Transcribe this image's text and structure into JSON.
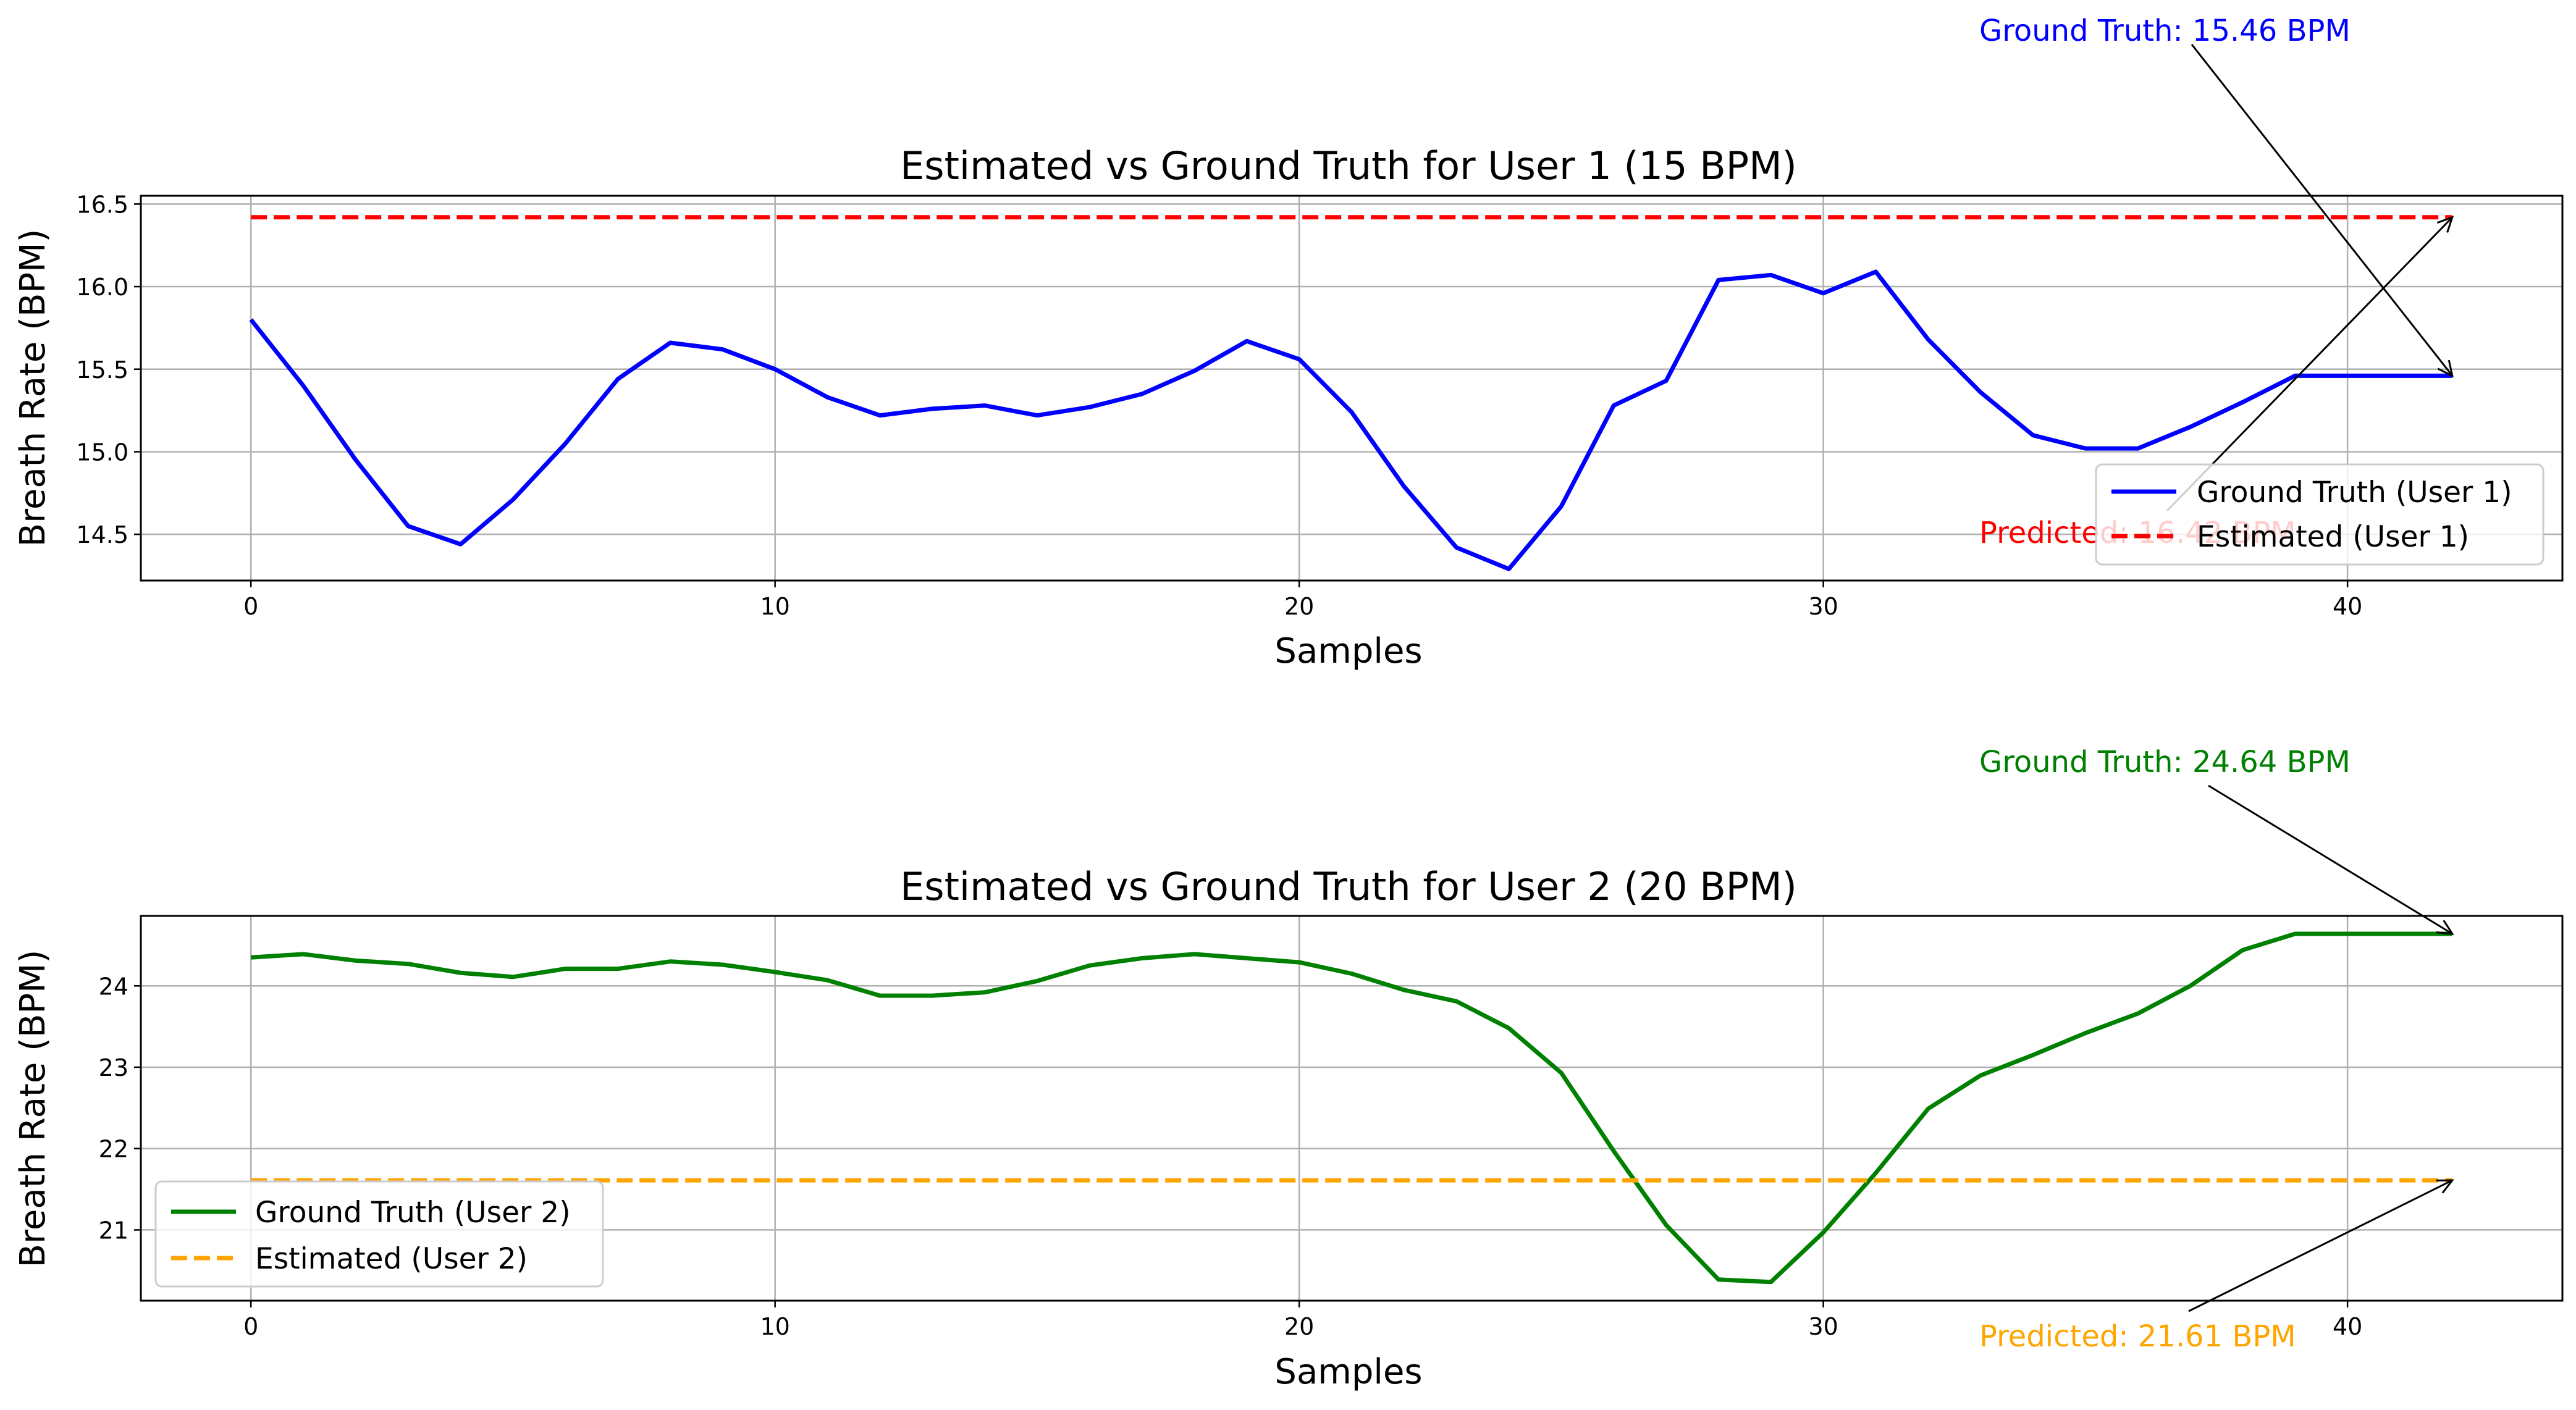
{
  "chart_data": [
    {
      "type": "line",
      "title": "Estimated vs Ground Truth for User 1 (15 BPM)",
      "xlabel": "Samples",
      "ylabel": "Breath Rate (BPM)",
      "xlim": [
        -2.1,
        44.1
      ],
      "ylim": [
        14.22,
        16.55
      ],
      "xticks": [
        0,
        10,
        20,
        30,
        40
      ],
      "yticks": [
        14.5,
        15.0,
        15.5,
        16.0,
        16.5
      ],
      "ytick_decimals": 1,
      "grid": true,
      "legend": "lower right",
      "series": [
        {
          "name": "Ground Truth (User 1)",
          "style": "solid",
          "color": "#0000ff",
          "x": [
            0,
            1,
            2,
            3,
            4,
            5,
            6,
            7,
            8,
            9,
            10,
            11,
            12,
            13,
            14,
            15,
            16,
            17,
            18,
            19,
            20,
            21,
            22,
            23,
            24,
            25,
            26,
            27,
            28,
            29,
            30,
            31,
            32,
            33,
            34,
            35,
            36,
            37,
            38,
            39,
            40,
            41,
            42
          ],
          "values": [
            15.8,
            15.4,
            14.95,
            14.55,
            14.44,
            14.71,
            15.05,
            15.44,
            15.66,
            15.62,
            15.5,
            15.33,
            15.22,
            15.26,
            15.28,
            15.22,
            15.27,
            15.35,
            15.49,
            15.67,
            15.56,
            15.24,
            14.79,
            14.42,
            14.29,
            14.67,
            15.28,
            15.43,
            16.04,
            16.07,
            15.96,
            16.09,
            15.68,
            15.36,
            15.1,
            15.02,
            15.02,
            15.15,
            15.3,
            15.46,
            15.46,
            15.46,
            15.46
          ]
        },
        {
          "name": "Estimated (User 1)",
          "style": "dashed",
          "color": "#ff0000",
          "x": [
            0,
            42
          ],
          "values": [
            16.42,
            16.42
          ]
        }
      ],
      "annotations": [
        {
          "text": "Ground Truth: 15.46 BPM",
          "color": "#0000ff",
          "target": [
            42,
            15.46
          ]
        },
        {
          "text": "Predicted: 16.42 BPM",
          "color": "#ff0000",
          "target": [
            42,
            16.42
          ]
        }
      ]
    },
    {
      "type": "line",
      "title": "Estimated vs Ground Truth for User 2 (20 BPM)",
      "xlabel": "Samples",
      "ylabel": "Breath Rate (BPM)",
      "xlim": [
        -2.1,
        44.1
      ],
      "ylim": [
        20.13,
        24.86
      ],
      "xticks": [
        0,
        10,
        20,
        30,
        40
      ],
      "yticks": [
        21,
        22,
        23,
        24
      ],
      "ytick_decimals": 0,
      "grid": true,
      "legend": "lower left",
      "series": [
        {
          "name": "Ground Truth (User 2)",
          "style": "solid",
          "color": "#008000",
          "x": [
            0,
            1,
            2,
            3,
            4,
            5,
            6,
            7,
            8,
            9,
            10,
            11,
            12,
            13,
            14,
            15,
            16,
            17,
            18,
            19,
            20,
            21,
            22,
            23,
            24,
            25,
            26,
            27,
            28,
            29,
            30,
            31,
            32,
            33,
            34,
            35,
            36,
            37,
            38,
            39,
            40,
            41,
            42
          ],
          "values": [
            24.35,
            24.39,
            24.31,
            24.27,
            24.16,
            24.11,
            24.21,
            24.21,
            24.3,
            24.26,
            24.17,
            24.07,
            23.88,
            23.88,
            23.92,
            24.06,
            24.25,
            24.34,
            24.39,
            24.34,
            24.29,
            24.15,
            23.95,
            23.81,
            23.48,
            22.93,
            21.97,
            21.06,
            20.39,
            20.36,
            20.97,
            21.7,
            22.49,
            22.9,
            23.15,
            23.42,
            23.66,
            24.0,
            24.44,
            24.64,
            24.64,
            24.64,
            24.64
          ]
        },
        {
          "name": "Estimated (User 2)",
          "style": "dashed",
          "color": "#ffa500",
          "x": [
            0,
            42
          ],
          "values": [
            21.61,
            21.61
          ]
        }
      ],
      "annotations": [
        {
          "text": "Ground Truth: 24.64 BPM",
          "color": "#008000",
          "target": [
            42,
            24.64
          ]
        },
        {
          "text": "Predicted: 21.61 BPM",
          "color": "#ffa500",
          "target": [
            42,
            21.61
          ]
        }
      ]
    }
  ]
}
